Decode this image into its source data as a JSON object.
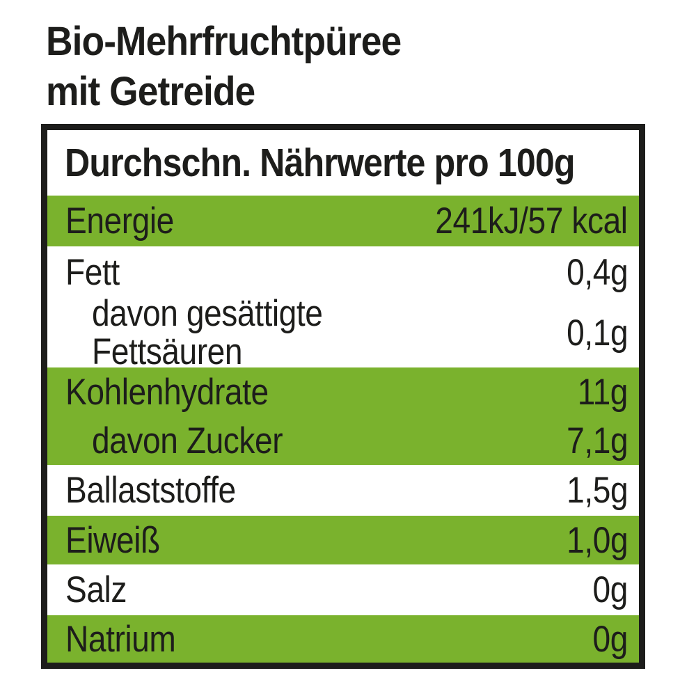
{
  "colors": {
    "green": "#7ab22d",
    "text": "#1d1d1b",
    "border": "#1d1d1b",
    "background": "#ffffff"
  },
  "title": {
    "line1": "Bio-Mehrfruchtpüree",
    "line2": "mit Getreide"
  },
  "table": {
    "header": "Durchschn. Nährwerte pro 100g",
    "rows": [
      {
        "label": "Energie",
        "value": "241kJ/57 kcal",
        "bg": "green",
        "indent": false
      },
      {
        "label": "Fett",
        "value": "0,4g",
        "bg": "white",
        "indent": false
      },
      {
        "label_line1": "davon gesättigte",
        "label_line2": "Fettsäuren",
        "value": "0,1g",
        "bg": "white",
        "indent": true
      },
      {
        "label": "Kohlenhydrate",
        "value": "11g",
        "bg": "green",
        "indent": false
      },
      {
        "label": "davon Zucker",
        "value": "7,1g",
        "bg": "green",
        "indent": true
      },
      {
        "label": "Ballaststoffe",
        "value": "1,5g",
        "bg": "white",
        "indent": false
      },
      {
        "label": "Eiweiß",
        "value": "1,0g",
        "bg": "green",
        "indent": false
      },
      {
        "label": "Salz",
        "value": "0g",
        "bg": "white",
        "indent": false
      },
      {
        "label": "Natrium",
        "value": "0g",
        "bg": "green",
        "indent": false
      }
    ]
  }
}
